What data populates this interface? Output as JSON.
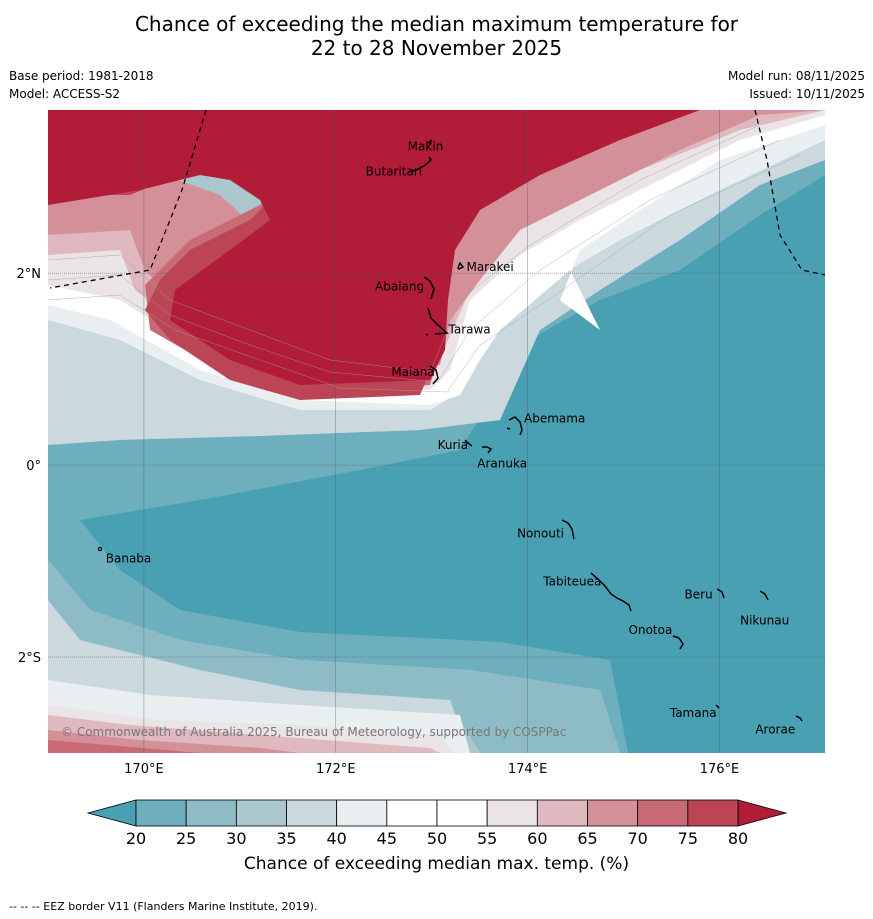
{
  "title": {
    "line1": "Chance of exceeding the median maximum temperature for",
    "line2": "22 to 28 November 2025"
  },
  "meta": {
    "base_period": "Base period: 1981-2018",
    "model": "Model: ACCESS-S2",
    "model_run": "Model run: 08/11/2025",
    "issued": "Issued: 10/11/2025"
  },
  "axes": {
    "lon_ticks": [
      {
        "value": 170,
        "label": "170°E"
      },
      {
        "value": 172,
        "label": "172°E"
      },
      {
        "value": 174,
        "label": "174°E"
      },
      {
        "value": 176,
        "label": "176°E"
      }
    ],
    "lat_ticks": [
      {
        "value": 2,
        "label": "2°N"
      },
      {
        "value": 0,
        "label": "0°"
      },
      {
        "value": -2,
        "label": "2°S"
      }
    ],
    "lon_range": [
      169.0,
      177.1
    ],
    "lat_range": [
      -3.0,
      3.7
    ]
  },
  "places": [
    {
      "name": "Makin",
      "lon": 173.1,
      "lat": 3.35
    },
    {
      "name": "Butaritari",
      "lon": 172.9,
      "lat": 3.1
    },
    {
      "name": "Marakei",
      "lon": 173.3,
      "lat": 2.0
    },
    {
      "name": "Abaiang",
      "lon": 172.9,
      "lat": 1.8
    },
    {
      "name": "Tarawa",
      "lon": 173.05,
      "lat": 1.4
    },
    {
      "name": "Maiana",
      "lon": 173.0,
      "lat": 0.95
    },
    {
      "name": "Abemama",
      "lon": 173.9,
      "lat": 0.4
    },
    {
      "name": "Kuria",
      "lon": 173.4,
      "lat": 0.22
    },
    {
      "name": "Aranuka",
      "lon": 173.6,
      "lat": 0.16
    },
    {
      "name": "Banaba",
      "lon": 169.55,
      "lat": -0.86
    },
    {
      "name": "Nonouti",
      "lon": 174.4,
      "lat": -0.65
    },
    {
      "name": "Tabiteuea",
      "lon": 174.8,
      "lat": -1.35
    },
    {
      "name": "Beru",
      "lon": 175.95,
      "lat": -1.33
    },
    {
      "name": "Nikunau",
      "lon": 176.45,
      "lat": -1.37
    },
    {
      "name": "Onotoa",
      "lon": 175.55,
      "lat": -1.82
    },
    {
      "name": "Tamana",
      "lon": 175.98,
      "lat": -2.5
    },
    {
      "name": "Arorae",
      "lon": 176.8,
      "lat": -2.65
    }
  ],
  "copyright": "© Commonwealth of Australia 2025, Bureau of Meteorology, supported by COSPPac",
  "colorbar": {
    "title": "Chance of exceeding median max. temp. (%)",
    "ticks": [
      "20",
      "25",
      "30",
      "35",
      "40",
      "45",
      "50",
      "55",
      "60",
      "65",
      "70",
      "75",
      "80"
    ],
    "colors": [
      "#4aa0b3",
      "#6eafbd",
      "#8ebcc6",
      "#abc7ce",
      "#cbd9de",
      "#e9eef1",
      "#ffffff",
      "#ffffff",
      "#ebe4e6",
      "#e0b8bf",
      "#d49099",
      "#c86b77",
      "#bc4555",
      "#b11c38"
    ]
  },
  "footnote": "--  --  -- EEZ border V11 (Flanders Marine Institute, 2019)."
}
